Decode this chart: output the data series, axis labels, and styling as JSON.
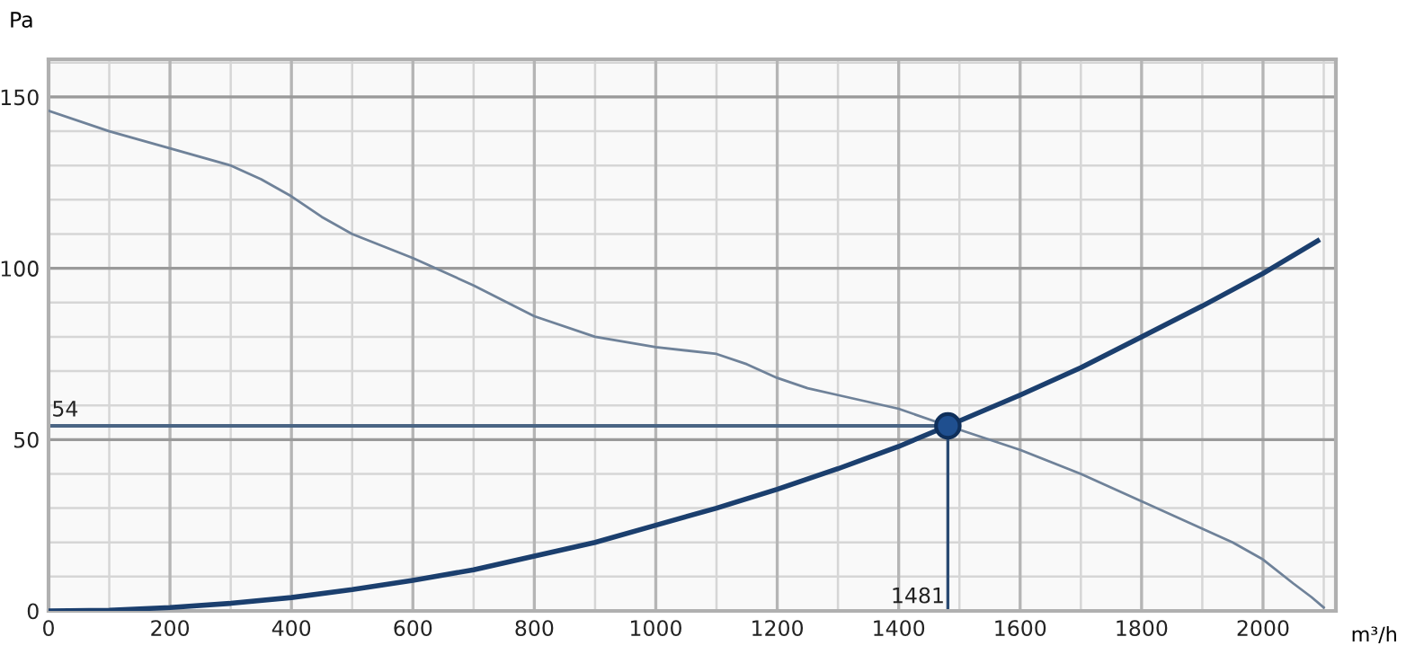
{
  "chart_data": {
    "type": "line",
    "xlabel": "m³/h",
    "ylabel": "Pa",
    "xlim": [
      0,
      2120
    ],
    "ylim": [
      0,
      161
    ],
    "xticks": [
      0,
      200,
      400,
      600,
      800,
      1000,
      1200,
      1400,
      1600,
      1800,
      2000
    ],
    "yticks": [
      0,
      50,
      100,
      150
    ],
    "grid": true,
    "marker": "none",
    "line_style": "solid",
    "series": [
      {
        "color": "#6f8299",
        "x": [
          0,
          100,
          200,
          300,
          350,
          400,
          450,
          500,
          600,
          700,
          800,
          900,
          1000,
          1100,
          1150,
          1200,
          1250,
          1300,
          1400,
          1481,
          1600,
          1700,
          1800,
          1900,
          1950,
          2000,
          2050,
          2080,
          2100
        ],
        "values": [
          146,
          140,
          135,
          130,
          126,
          121,
          115,
          110,
          103,
          95,
          86,
          80,
          77,
          75,
          72,
          68,
          65,
          63,
          59,
          54,
          47,
          40,
          32,
          24,
          20,
          15,
          8,
          4,
          1
        ]
      },
      {
        "color": "#1b3f6e",
        "x": [
          0,
          100,
          200,
          300,
          400,
          500,
          600,
          700,
          800,
          900,
          1000,
          1100,
          1200,
          1300,
          1400,
          1481,
          1600,
          1700,
          1800,
          1900,
          2000,
          2090
        ],
        "values": [
          0,
          0.2,
          1,
          2.2,
          3.9,
          6.2,
          8.9,
          12,
          16,
          20,
          25,
          30,
          35.5,
          41.5,
          48,
          54,
          63,
          71,
          80,
          89,
          98.5,
          108
        ]
      },
      {
        "type": "scatter",
        "color": "#1f4f8f",
        "marker": "circle",
        "x": [
          1481
        ],
        "values": [
          54
        ]
      }
    ],
    "ref_lines": [
      {
        "axis": "y",
        "value": 54,
        "label": "54",
        "color": "#4a6584"
      },
      {
        "axis": "x",
        "value": 1481,
        "label": "1481",
        "color": "#2a4a72"
      }
    ]
  }
}
